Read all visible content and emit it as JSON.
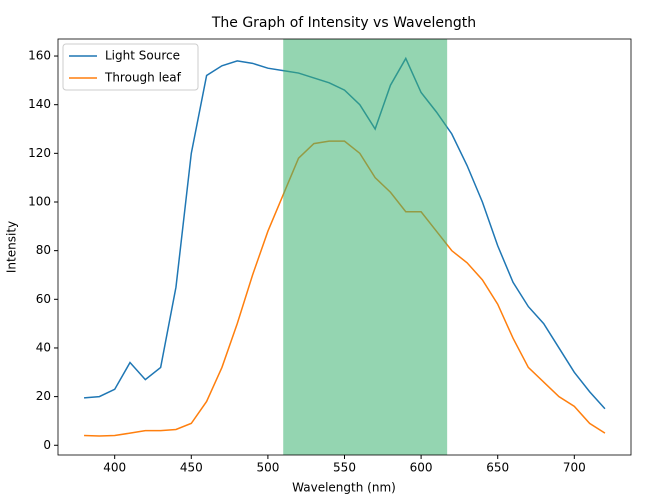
{
  "chart_data": {
    "type": "line",
    "title": "The Graph of Intensity vs Wavelength",
    "x_label": "Wavelength (nm)",
    "y_label": "Intensity",
    "x": [
      380,
      390,
      400,
      410,
      420,
      430,
      440,
      450,
      460,
      470,
      480,
      490,
      500,
      510,
      520,
      530,
      540,
      550,
      560,
      570,
      580,
      590,
      600,
      610,
      620,
      630,
      640,
      650,
      660,
      670,
      680,
      690,
      700,
      710,
      720
    ],
    "series": [
      {
        "name": "Light Source",
        "color": "#1f77b4",
        "values": [
          19.5,
          20,
          23,
          34,
          27,
          32,
          65,
          120,
          152,
          156,
          158,
          157,
          155,
          154,
          153,
          151,
          149,
          146,
          140,
          130,
          148,
          159,
          145,
          137,
          128,
          115,
          100,
          82,
          67,
          57,
          50,
          40,
          30,
          22,
          15
        ]
      },
      {
        "name": "Through leaf",
        "color": "#ff7f0e",
        "values": [
          4,
          3.8,
          4,
          5,
          6,
          6,
          6.5,
          9,
          18,
          32,
          50,
          70,
          88,
          103,
          118,
          124,
          125,
          125,
          120,
          110,
          104,
          96,
          96,
          88,
          80,
          75,
          68,
          58,
          44,
          32,
          26,
          20,
          16,
          9,
          5
        ]
      }
    ],
    "span": {
      "xmin": 510,
      "xmax": 617,
      "color": "#3cb371"
    },
    "xlim": [
      363,
      737
    ],
    "ylim": [
      -4,
      167
    ],
    "xticks": [
      400,
      450,
      500,
      550,
      600,
      650,
      700
    ],
    "yticks": [
      0,
      20,
      40,
      60,
      80,
      100,
      120,
      140,
      160
    ],
    "legend": "upper left"
  }
}
